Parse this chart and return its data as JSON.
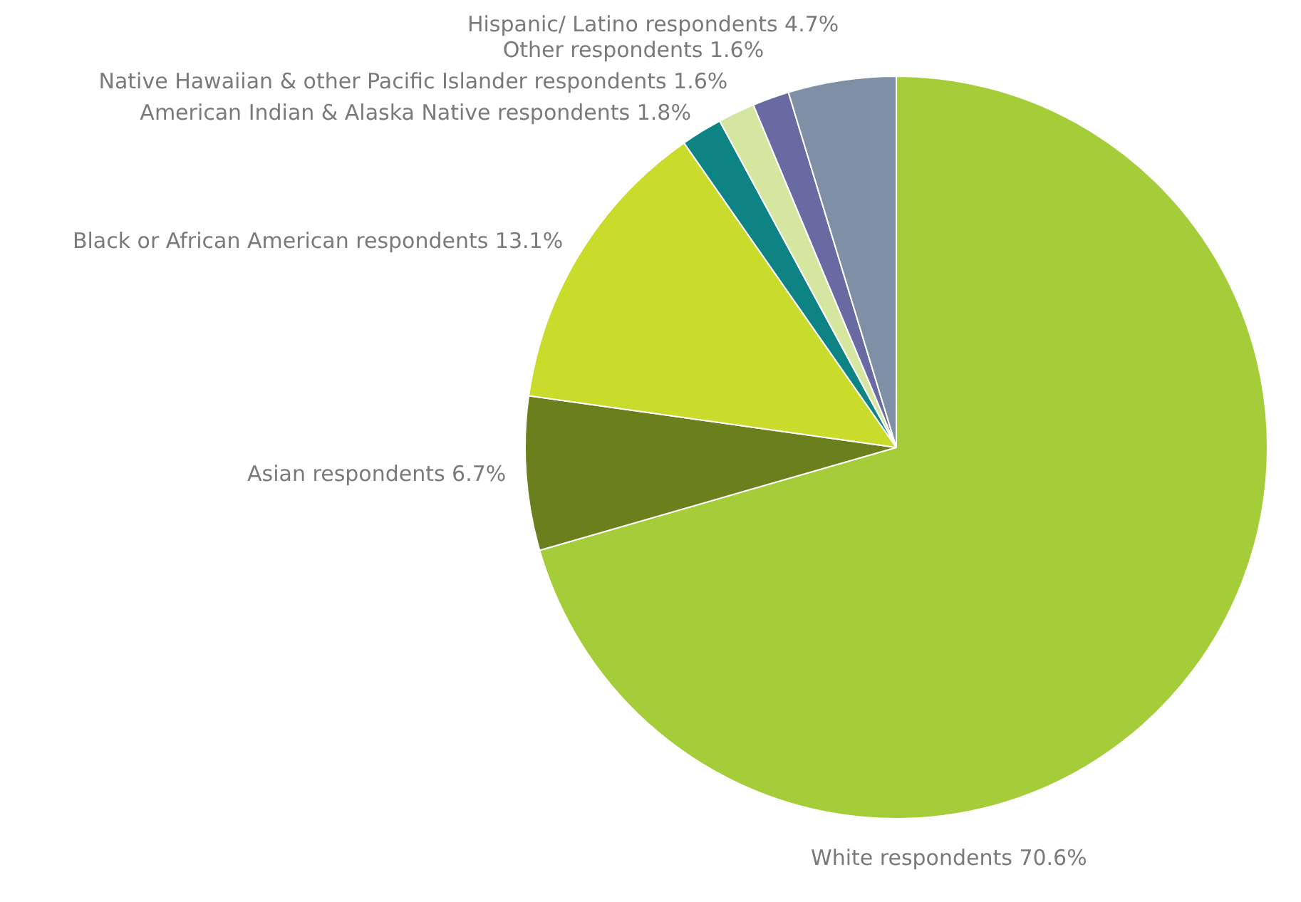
{
  "chart_data": {
    "type": "pie",
    "categories": [
      "White respondents",
      "Asian respondents",
      "Black or African American respondents",
      "American Indian & Alaska Native respondents",
      "Native Hawaiian & other Pacific Islander respondents",
      "Other respondents",
      "Hispanic/ Latino respondents"
    ],
    "values": [
      70.6,
      6.7,
      13.1,
      1.8,
      1.6,
      1.6,
      4.7
    ],
    "value_labels": [
      "70.6%",
      "6.7%",
      "13.1%",
      "1.8%",
      "1.6%",
      "1.6%",
      "4.7%"
    ],
    "colors": [
      "#a5cd39",
      "#6b7f1d",
      "#c9dc2b",
      "#0e8384",
      "#d5e6a0",
      "#6a6aa3",
      "#7f90a6"
    ],
    "legend": false
  }
}
